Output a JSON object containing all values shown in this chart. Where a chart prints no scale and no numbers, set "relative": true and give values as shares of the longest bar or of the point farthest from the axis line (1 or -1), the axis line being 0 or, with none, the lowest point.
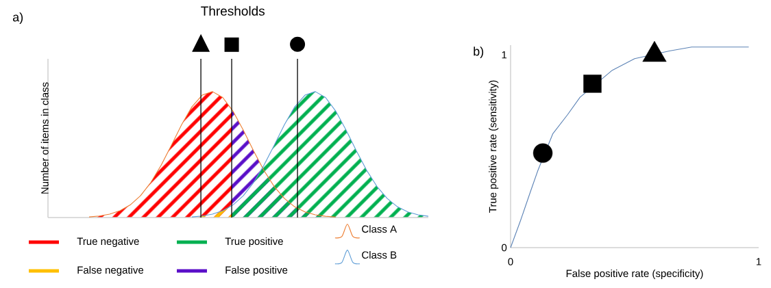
{
  "chart_data": [
    {
      "type": "line",
      "relative": true,
      "title": "Thresholds",
      "ylabel": "Number of items in class",
      "annotations": [
        "a)",
        "True negative",
        "False negative",
        "True positive",
        "False positive"
      ],
      "legend": "bottom",
      "categories": [
        null,
        null,
        null,
        null,
        null,
        null,
        null,
        null,
        null,
        null,
        null,
        null,
        null,
        null,
        null,
        null,
        null,
        null,
        null,
        null,
        null,
        null,
        null,
        null,
        null,
        null,
        null,
        null,
        null,
        null,
        null,
        null,
        null,
        null,
        null,
        null,
        null,
        null
      ],
      "series": [
        {
          "name": "Class A",
          "color": "#ed7d31",
          "values": [
            null,
            null,
            null,
            null,
            0.005,
            0.012,
            0.027,
            0.054,
            0.1,
            0.173,
            0.278,
            0.414,
            0.573,
            0.737,
            0.879,
            0.972,
            1,
            0.953,
            0.844,
            0.694,
            0.53,
            0.375,
            0.247,
            0.151,
            0.085,
            0.045,
            0.022,
            0.01,
            0.004,
            null,
            null,
            null,
            null,
            null,
            null,
            null,
            null,
            null
          ]
        },
        {
          "name": "Class B",
          "color": "#5b9bd5",
          "values": [
            null,
            null,
            null,
            null,
            null,
            null,
            null,
            null,
            null,
            null,
            null,
            null,
            null,
            null,
            0.005,
            0.012,
            0.027,
            0.054,
            0.1,
            0.173,
            0.278,
            0.414,
            0.573,
            0.737,
            0.879,
            0.972,
            1,
            0.953,
            0.844,
            0.694,
            0.53,
            0.375,
            0.247,
            0.151,
            0.085,
            0.045,
            0.022,
            0.01
          ]
        }
      ]
    },
    {
      "type": "line",
      "xlabel": "False positive rate (specificity)",
      "ylabel": "True positive rate (sensitivity)",
      "annotations": [
        "b)"
      ],
      "xlim": [
        0,
        1
      ],
      "ylim": [
        0,
        1.05
      ],
      "xticks": [
        0,
        1
      ],
      "yticks": [
        0,
        1
      ],
      "series": [
        {
          "color": "#5b82b5",
          "x": [
            0,
            0.04,
            0.08,
            0.11,
            0.17,
            0.23,
            0.28,
            0.41,
            0.5,
            0.64,
            0.73,
            0.83,
            0.96
          ],
          "values": [
            0,
            0.14,
            0.29,
            0.4,
            0.59,
            0.69,
            0.78,
            0.92,
            0.98,
            1.02,
            1.04,
            1.04,
            1.04
          ]
        },
        {
          "type": "scatter",
          "marker": "circle",
          "color": "#000000",
          "x": [
            0.13
          ],
          "values": [
            0.49
          ]
        },
        {
          "type": "scatter",
          "marker": "square",
          "color": "#000000",
          "x": [
            0.33
          ],
          "values": [
            0.85
          ]
        },
        {
          "type": "scatter",
          "marker": "triangle",
          "color": "#000000",
          "x": [
            0.58
          ],
          "values": [
            1.0
          ]
        }
      ]
    }
  ]
}
